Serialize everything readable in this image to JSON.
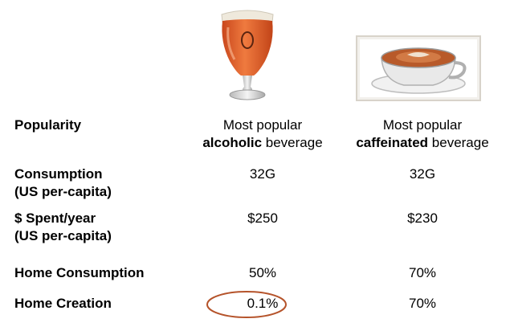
{
  "rows": {
    "popularity": {
      "label": "Popularity",
      "beer": {
        "line1": "Most popular",
        "bold": "alcoholic",
        "rest": " beverage"
      },
      "coffee": {
        "line1": "Most popular",
        "bold": "caffeinated",
        "rest": " beverage"
      }
    },
    "consumption": {
      "label_line1": "Consumption",
      "label_line2": "(US per-capita)",
      "beer": "32G",
      "coffee": "32G"
    },
    "spent": {
      "label_line1": "$ Spent/year",
      "label_line2": "(US per-capita)",
      "beer": "$250",
      "coffee": "$230"
    },
    "home_consumption": {
      "label": "Home Consumption",
      "beer": "50%",
      "coffee": "70%"
    },
    "home_creation": {
      "label": "Home Creation",
      "beer": "0.1%",
      "coffee": "70%"
    }
  },
  "icons": {
    "beer": "beer-glass-icon",
    "coffee": "coffee-cup-icon"
  },
  "colors": {
    "highlight_circle": "#b5532a",
    "beer": "#e0622c"
  }
}
